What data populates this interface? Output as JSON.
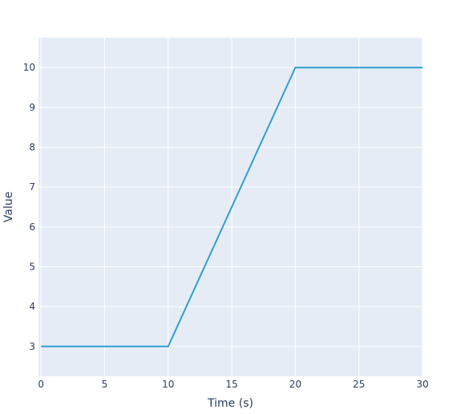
{
  "chart_data": {
    "type": "line",
    "title": "",
    "xlabel": "Time (s)",
    "ylabel": "Value",
    "xlim": [
      -0.2,
      30
    ],
    "ylim": [
      2.25,
      10.75
    ],
    "x_ticks": [
      0,
      5,
      10,
      15,
      20,
      25,
      30
    ],
    "y_ticks": [
      3,
      4,
      5,
      6,
      7,
      8,
      9,
      10
    ],
    "grid": true,
    "legend": "none",
    "colors": {
      "plot_background": "#e5ecf6",
      "grid": "#ffffff",
      "line": "#2e9fd0",
      "text": "#2a3f5f"
    },
    "series": [
      {
        "x": [
          0,
          10,
          20,
          30
        ],
        "y": [
          3,
          3,
          10,
          10
        ]
      }
    ]
  }
}
